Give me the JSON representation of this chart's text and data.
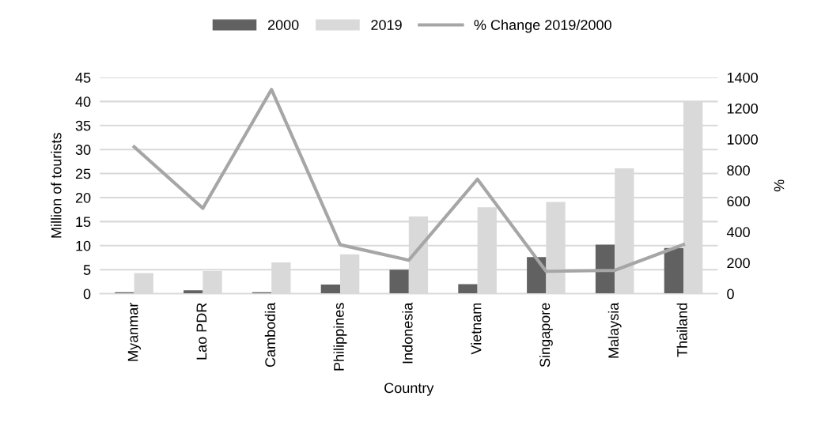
{
  "chart_data": {
    "type": "bar",
    "xlabel": "Country",
    "ylabel": "Million of tourists",
    "y2label": "%",
    "categories": [
      "Myanmar",
      "Lao PDR",
      "Cambodia",
      "Philippines",
      "Indonesia",
      "Vietnam",
      "Singapore",
      "Malaysia",
      "Thailand"
    ],
    "series": [
      {
        "name": "2000",
        "color": "#616161",
        "values": [
          0.3,
          0.7,
          0.3,
          1.9,
          5.0,
          2.0,
          7.6,
          10.2,
          9.5
        ]
      },
      {
        "name": "2019",
        "color": "#d9d9d9",
        "values": [
          4.3,
          4.7,
          6.5,
          8.2,
          16.1,
          18.0,
          19.1,
          26.1,
          39.9
        ]
      },
      {
        "name": "% Change 2019/2000",
        "type": "line",
        "axis": "y2",
        "color": "#a6a6a6",
        "values": [
          951,
          553,
          1322,
          317,
          217,
          741,
          145,
          151,
          318
        ]
      }
    ],
    "ylim": [
      0,
      45
    ],
    "yticks": [
      0,
      5,
      10,
      15,
      20,
      25,
      30,
      35,
      40,
      45
    ],
    "y2lim": [
      0,
      1400
    ],
    "y2ticks": [
      0,
      200,
      400,
      600,
      800,
      1000,
      1200,
      1400
    ],
    "grid": "y",
    "legend": "top",
    "marker": "none",
    "line_style": "solid"
  }
}
